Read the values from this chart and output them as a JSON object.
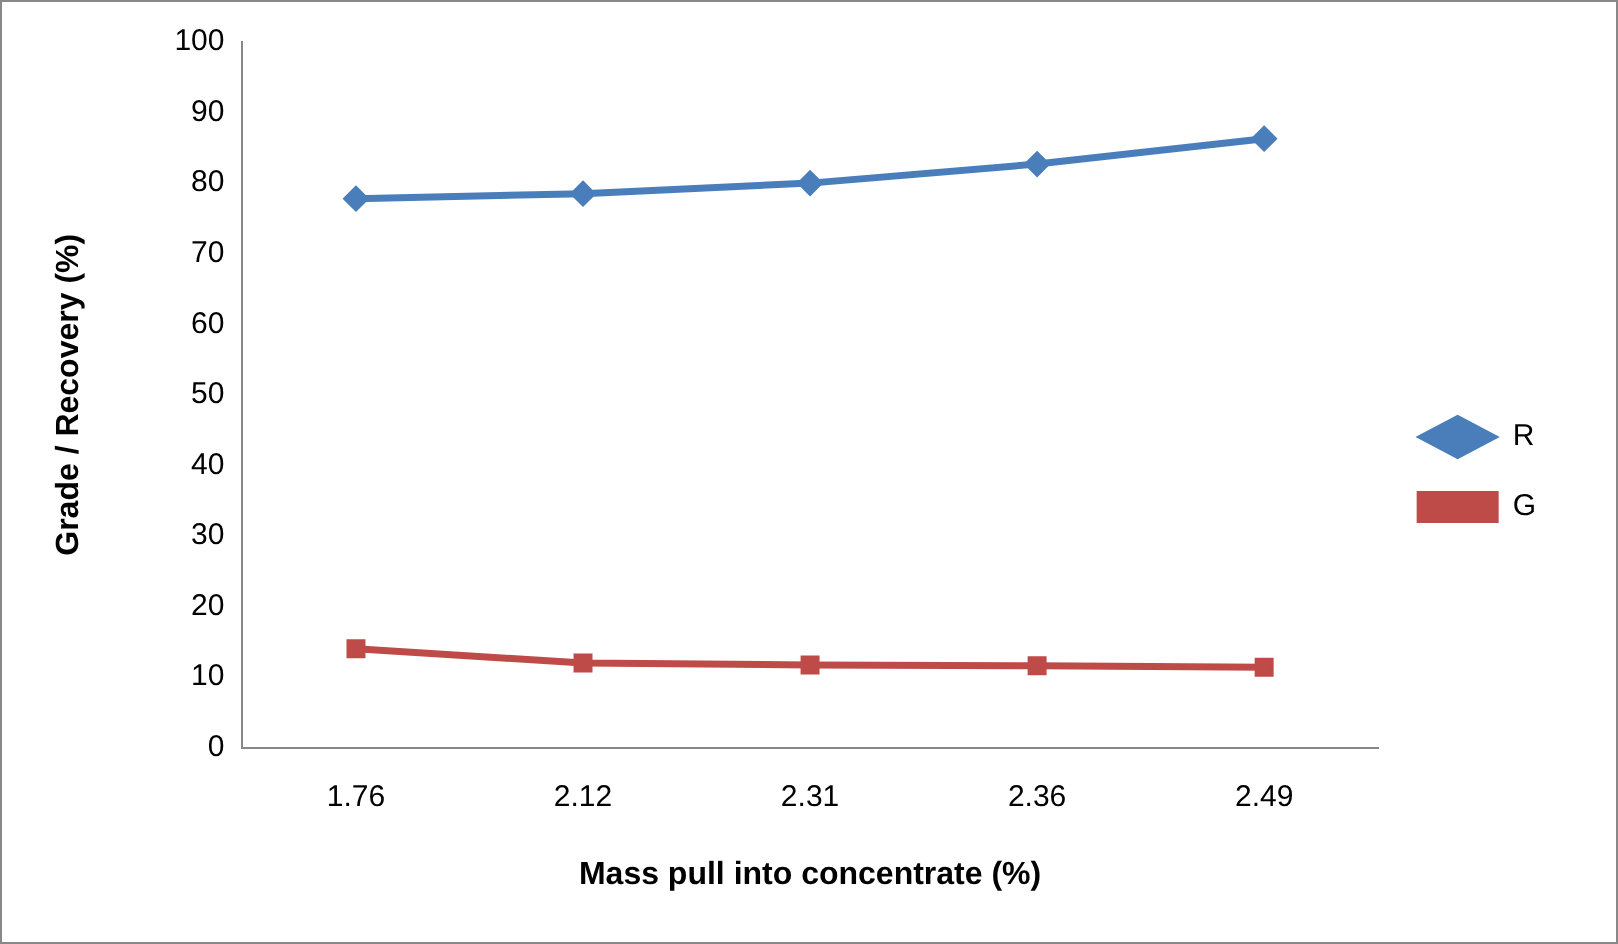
{
  "chart_data": {
    "type": "line",
    "xlabel": "Mass pull into concentrate (%)",
    "ylabel": "Grade / Recovery (%)",
    "categories": [
      "1.76",
      "2.12",
      "2.31",
      "2.36",
      "2.49"
    ],
    "series": [
      {
        "name": "R",
        "color": "#4a7ebb",
        "values": [
          77.8,
          78.5,
          80,
          82.7,
          86.3
        ],
        "marker": "diamond"
      },
      {
        "name": "G",
        "color": "#be4b48",
        "values": [
          14,
          12,
          11.7,
          11.6,
          11.4
        ],
        "marker": "square"
      }
    ],
    "ylim": [
      0,
      100
    ],
    "yticks": [
      0,
      10,
      20,
      30,
      40,
      50,
      60,
      70,
      80,
      90,
      100
    ],
    "grid": false,
    "legend": "right",
    "line_style": "solid"
  }
}
